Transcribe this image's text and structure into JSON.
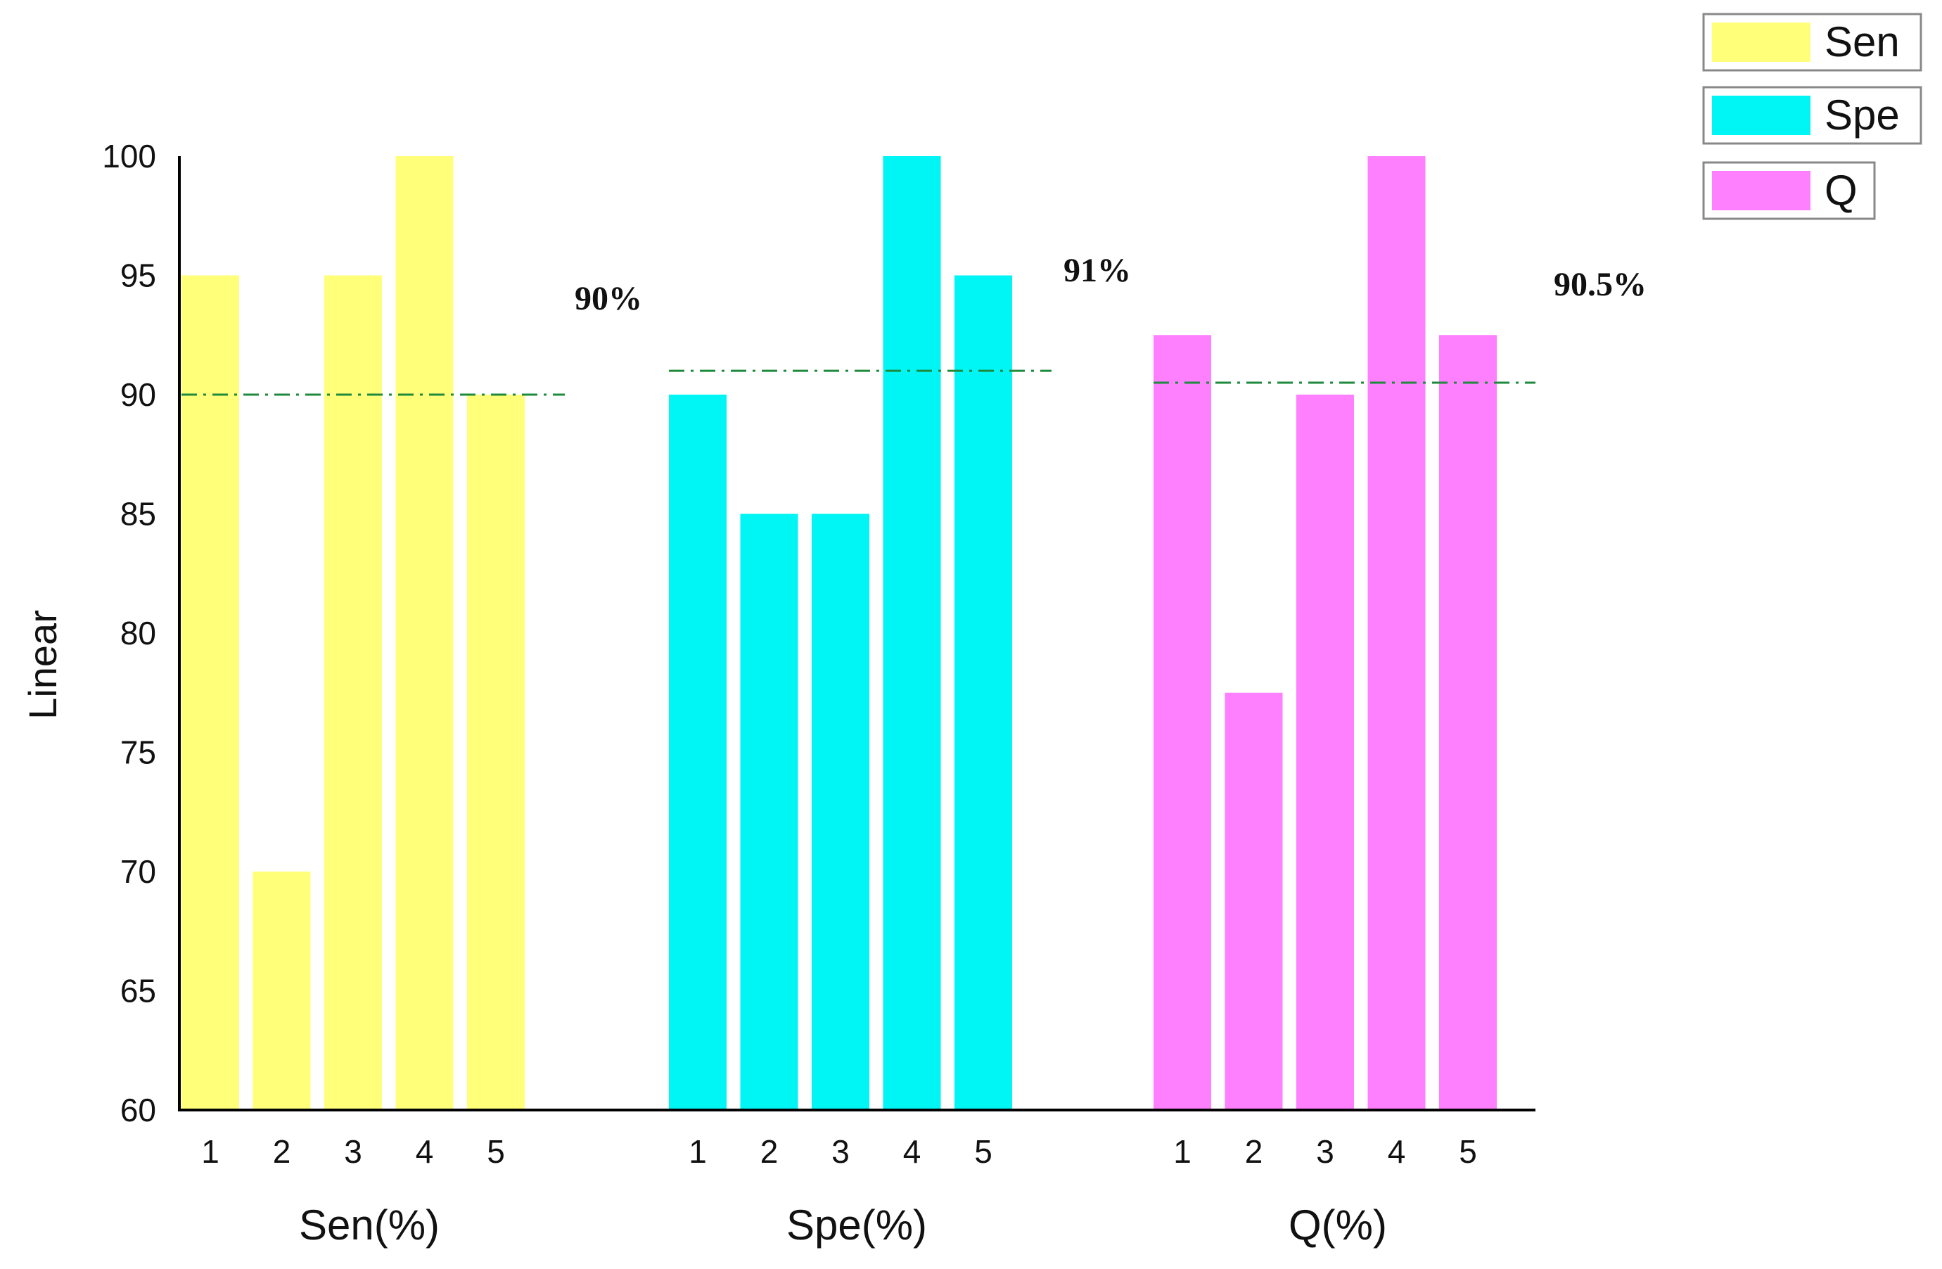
{
  "chart_data": {
    "type": "bar",
    "ylabel": "Linear",
    "ylim": [
      60,
      100
    ],
    "yticks": [
      "60",
      "65",
      "70",
      "75",
      "80",
      "85",
      "90",
      "95",
      "100"
    ],
    "categories": [
      "1",
      "2",
      "3",
      "4",
      "5"
    ],
    "series": [
      {
        "name": "Sen",
        "group_label": "Sen(%)",
        "color": "#ffff7a",
        "values": [
          95,
          70,
          95,
          100,
          90
        ],
        "average": 90,
        "average_label": "90%"
      },
      {
        "name": "Spe",
        "group_label": "Spe(%)",
        "color": "#00f5f5",
        "values": [
          90,
          85,
          85,
          100,
          95
        ],
        "average": 91,
        "average_label": "91%"
      },
      {
        "name": "Q",
        "group_label": "Q(%)",
        "color": "#ff80ff",
        "values": [
          92.5,
          77.5,
          90,
          100,
          92.5
        ],
        "average": 90.5,
        "average_label": "90.5%"
      }
    ],
    "average_line_color": "#1e8a3c",
    "legend": {
      "position": "top-right",
      "entries": [
        "Sen",
        "Spe",
        "Q"
      ]
    }
  }
}
